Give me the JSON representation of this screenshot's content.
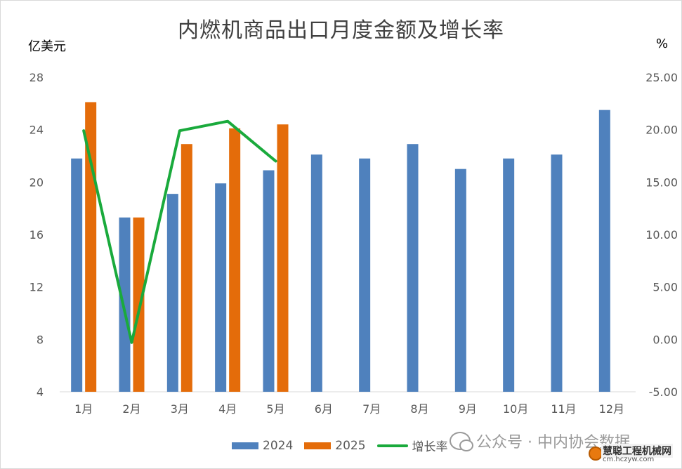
{
  "chart_data": {
    "type": "bar",
    "title": "内燃机商品出口月度金额及增长率",
    "ylabel_left": "亿美元",
    "ylabel_right": "%",
    "categories": [
      "1月",
      "2月",
      "3月",
      "4月",
      "5月",
      "6月",
      "7月",
      "8月",
      "9月",
      "10月",
      "11月",
      "12月"
    ],
    "ylim_left": [
      4,
      28
    ],
    "yticks_left": [
      "4",
      "8",
      "12",
      "16",
      "20",
      "24",
      "28"
    ],
    "ylim_right": [
      -5,
      25
    ],
    "yticks_right": [
      "-5.00",
      "0.00",
      "5.00",
      "10.00",
      "15.00",
      "20.00",
      "25.00"
    ],
    "series": [
      {
        "name": "2024",
        "type": "bar",
        "axis": "left",
        "color": "#4f81bd",
        "values": [
          21.8,
          17.3,
          19.1,
          19.9,
          20.9,
          22.1,
          21.8,
          22.9,
          21.0,
          21.8,
          22.1,
          25.5
        ]
      },
      {
        "name": "2025",
        "type": "bar",
        "axis": "left",
        "color": "#e46c0a",
        "values": [
          26.1,
          17.3,
          22.9,
          24.1,
          24.4,
          null,
          null,
          null,
          null,
          null,
          null,
          null
        ]
      },
      {
        "name": "增长率",
        "type": "line",
        "axis": "right",
        "color": "#1aaa3c",
        "values": [
          19.9,
          -0.3,
          19.9,
          20.8,
          17.0,
          null,
          null,
          null,
          null,
          null,
          null,
          null
        ]
      }
    ],
    "grid": false,
    "legend": "bottom"
  },
  "watermark": {
    "text": "公众号 · 中内协会数据",
    "icon": "wechat-icon"
  },
  "logo": {
    "main": "慧聪工程机械网",
    "sub": "cm.hczyw.com"
  }
}
